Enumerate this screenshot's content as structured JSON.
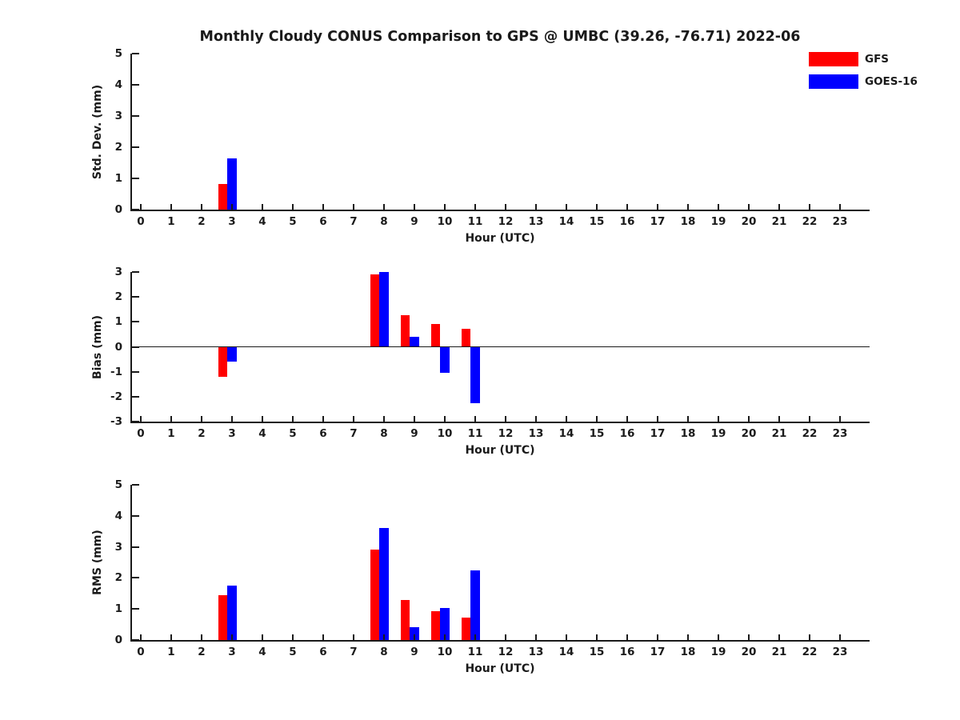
{
  "title": "Monthly Cloudy CONUS Comparison to GPS @ UMBC (39.26, -76.71) 2022-06",
  "colors": {
    "gfs": "#ff0000",
    "goes16": "#0000ff",
    "axis": "#1a1a1a",
    "background": "#ffffff"
  },
  "legend": {
    "position": "top-right",
    "entries": [
      {
        "label": "GFS",
        "color": "#ff0000"
      },
      {
        "label": "GOES-16",
        "color": "#0000ff"
      }
    ]
  },
  "chart_data": [
    {
      "type": "bar",
      "panel": "std-dev",
      "ylabel": "Std. Dev. (mm)",
      "xlabel": "Hour (UTC)",
      "ylim": [
        0,
        5
      ],
      "yticks": [
        0,
        1,
        2,
        3,
        4,
        5
      ],
      "zero_line": false,
      "grid": false,
      "categories": [
        0,
        1,
        2,
        3,
        4,
        5,
        6,
        7,
        8,
        9,
        10,
        11,
        12,
        13,
        14,
        15,
        16,
        17,
        18,
        19,
        20,
        21,
        22,
        23
      ],
      "series": [
        {
          "name": "GFS",
          "color": "#ff0000",
          "values": [
            null,
            null,
            null,
            0.82,
            null,
            null,
            null,
            null,
            null,
            null,
            null,
            null,
            null,
            null,
            null,
            null,
            null,
            null,
            null,
            null,
            null,
            null,
            null,
            null
          ]
        },
        {
          "name": "GOES-16",
          "color": "#0000ff",
          "values": [
            null,
            null,
            null,
            1.65,
            null,
            null,
            null,
            null,
            null,
            null,
            null,
            null,
            null,
            null,
            null,
            null,
            null,
            null,
            null,
            null,
            null,
            null,
            null,
            null
          ]
        }
      ]
    },
    {
      "type": "bar",
      "panel": "bias",
      "ylabel": "Bias (mm)",
      "xlabel": "Hour (UTC)",
      "ylim": [
        -3,
        3
      ],
      "yticks": [
        -3,
        -2,
        -1,
        0,
        1,
        2,
        3
      ],
      "zero_line": true,
      "grid": false,
      "categories": [
        0,
        1,
        2,
        3,
        4,
        5,
        6,
        7,
        8,
        9,
        10,
        11,
        12,
        13,
        14,
        15,
        16,
        17,
        18,
        19,
        20,
        21,
        22,
        23
      ],
      "series": [
        {
          "name": "GFS",
          "color": "#ff0000",
          "values": [
            null,
            null,
            null,
            -1.2,
            null,
            null,
            null,
            null,
            2.9,
            1.28,
            0.93,
            0.72,
            null,
            null,
            null,
            null,
            null,
            null,
            null,
            null,
            null,
            null,
            null,
            null
          ]
        },
        {
          "name": "GOES-16",
          "color": "#0000ff",
          "values": [
            null,
            null,
            null,
            -0.6,
            null,
            null,
            null,
            null,
            3.0,
            0.4,
            -1.05,
            -2.25,
            null,
            null,
            null,
            null,
            null,
            null,
            null,
            null,
            null,
            null,
            null,
            null
          ]
        }
      ]
    },
    {
      "type": "bar",
      "panel": "rms",
      "ylabel": "RMS (mm)",
      "xlabel": "Hour (UTC)",
      "ylim": [
        0,
        5
      ],
      "yticks": [
        0,
        1,
        2,
        3,
        4,
        5
      ],
      "zero_line": false,
      "grid": false,
      "categories": [
        0,
        1,
        2,
        3,
        4,
        5,
        6,
        7,
        8,
        9,
        10,
        11,
        12,
        13,
        14,
        15,
        16,
        17,
        18,
        19,
        20,
        21,
        22,
        23
      ],
      "series": [
        {
          "name": "GFS",
          "color": "#ff0000",
          "values": [
            null,
            null,
            null,
            1.45,
            null,
            null,
            null,
            null,
            2.9,
            1.3,
            0.93,
            0.72,
            null,
            null,
            null,
            null,
            null,
            null,
            null,
            null,
            null,
            null,
            null,
            null
          ]
        },
        {
          "name": "GOES-16",
          "color": "#0000ff",
          "values": [
            null,
            null,
            null,
            1.75,
            null,
            null,
            null,
            null,
            3.6,
            0.42,
            1.03,
            2.24,
            null,
            null,
            null,
            null,
            null,
            null,
            null,
            null,
            null,
            null,
            null,
            null
          ]
        }
      ]
    }
  ]
}
